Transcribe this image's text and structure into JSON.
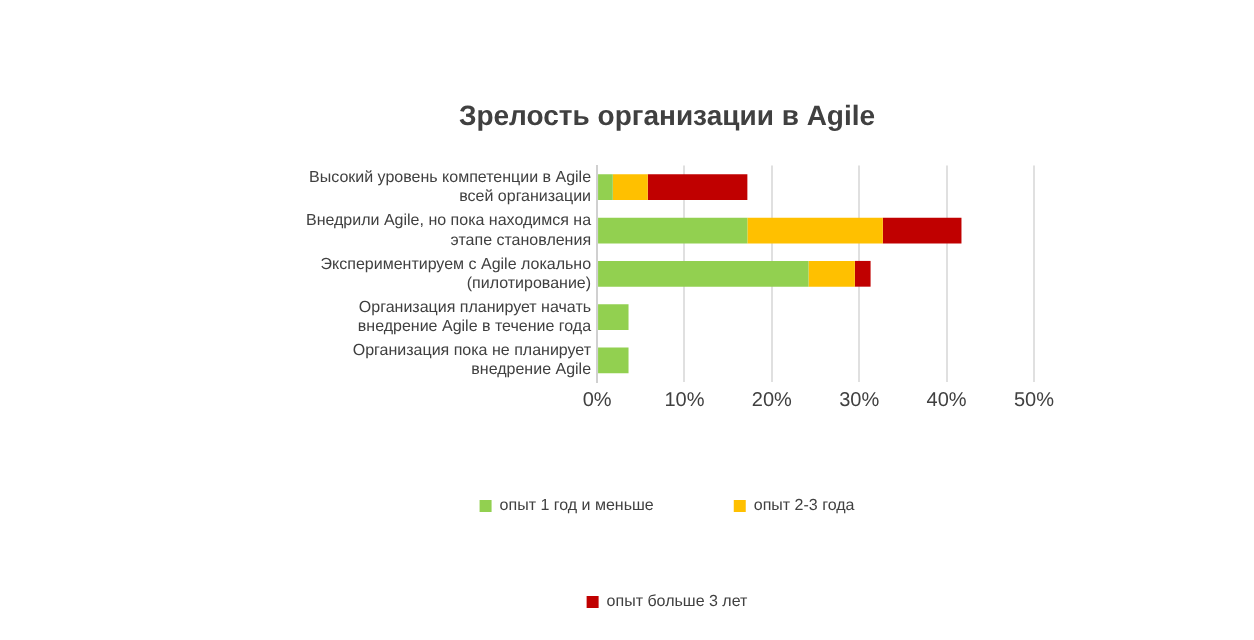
{
  "chart_data": {
    "type": "bar",
    "orientation": "horizontal",
    "stacked": true,
    "title": "Зрелость организации в Agile",
    "categories": [
      "Высокий уровень компетенции в Agile всей организации",
      "Внедрили Agile, но пока находимся на этапе становления",
      "Экспериментируем с Agile локально (пилотирование)",
      "Организация планирует начать внедрение Agile в течение года",
      "Организация пока не планирует внедрение Agile"
    ],
    "series": [
      {
        "name": "опыт 1 год и меньше",
        "color": "#92d050",
        "values": [
          1.8,
          17.2,
          24.2,
          3.6,
          3.6
        ]
      },
      {
        "name": "опыт 2-3 года",
        "color": "#ffc000",
        "values": [
          4,
          15.5,
          5.3,
          null,
          null
        ]
      },
      {
        "name": "опыт больше 3 лет",
        "color": "#c00000",
        "values": [
          11.4,
          9,
          1.8,
          null,
          null
        ]
      }
    ],
    "xlim": [
      0,
      50
    ],
    "xticks": [
      {
        "value": 0,
        "label": "0%"
      },
      {
        "value": 10,
        "label": "10%"
      },
      {
        "value": 20,
        "label": "20%"
      },
      {
        "value": 30,
        "label": "30%"
      },
      {
        "value": 40,
        "label": "40%"
      },
      {
        "value": 50,
        "label": "50%"
      }
    ],
    "grid": "x",
    "legend": "bottom"
  }
}
